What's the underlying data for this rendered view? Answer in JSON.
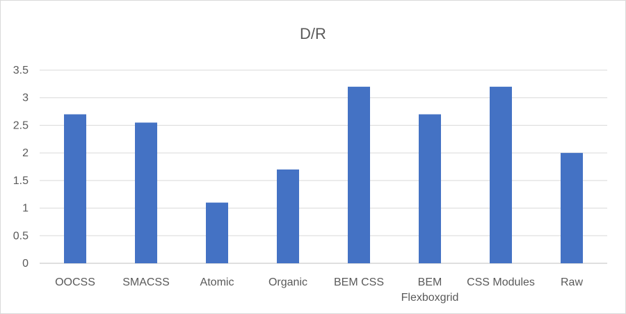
{
  "chart_data": {
    "type": "bar",
    "title": "D/R",
    "xlabel": "",
    "ylabel": "",
    "categories": [
      "OOCSS",
      "SMACSS",
      "Atomic",
      "Organic",
      "BEM CSS",
      "BEM Flexboxgrid",
      "CSS Modules",
      "Raw"
    ],
    "category_lines": [
      [
        "OOCSS"
      ],
      [
        "SMACSS"
      ],
      [
        "Atomic"
      ],
      [
        "Organic"
      ],
      [
        "BEM CSS"
      ],
      [
        "BEM",
        "Flexboxgrid"
      ],
      [
        "CSS Modules"
      ],
      [
        "Raw"
      ]
    ],
    "values": [
      2.7,
      2.55,
      1.1,
      1.7,
      3.2,
      2.7,
      3.2,
      2.0
    ],
    "ylim": [
      0,
      3.5
    ],
    "yticks": [
      "0",
      "0.5",
      "1",
      "1.5",
      "2",
      "2.5",
      "3",
      "3.5"
    ],
    "grid": true,
    "legend": "none",
    "bar_color": "#4472c4"
  }
}
